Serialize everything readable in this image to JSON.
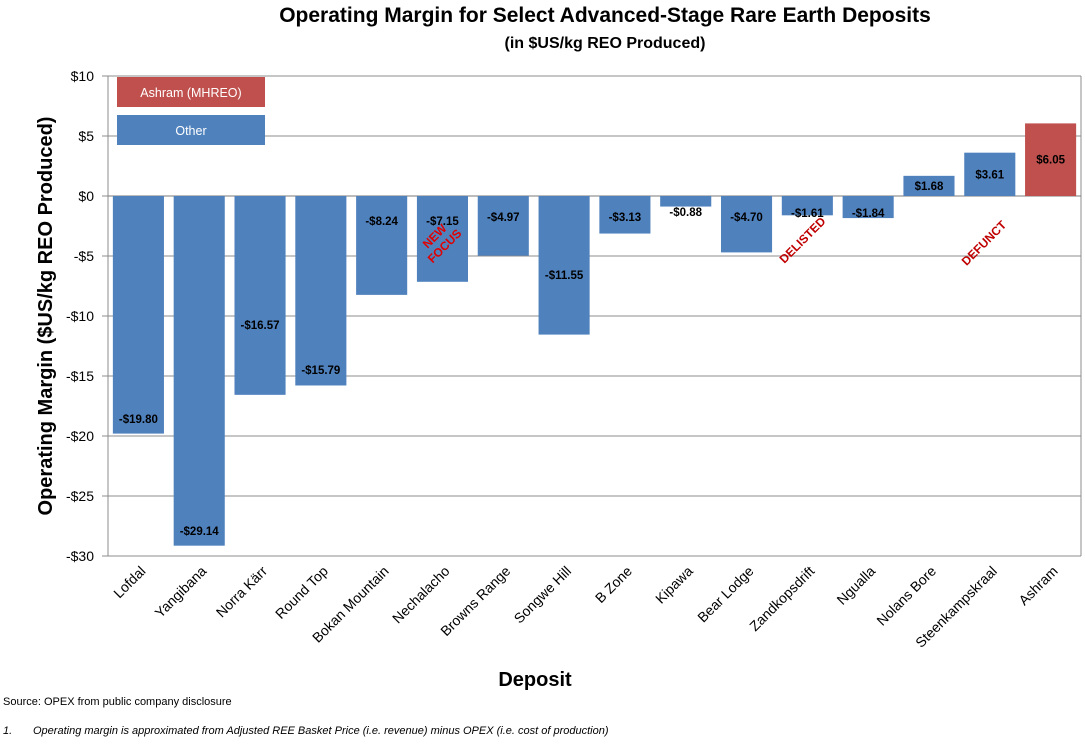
{
  "chart_data": {
    "type": "bar",
    "title": "Operating Margin for Select Advanced-Stage Rare Earth Deposits",
    "subtitle": "(in $US/kg REO Produced)",
    "xlabel": "Deposit",
    "ylabel": "Operating Margin ($US/kg REO Produced)",
    "ylim": [
      -30,
      10
    ],
    "yticks": [
      10,
      5,
      0,
      -5,
      -10,
      -15,
      -20,
      -25,
      -30
    ],
    "ytick_labels": [
      "$10",
      "$5",
      "$0",
      "-$5",
      "-$10",
      "-$15",
      "-$20",
      "-$25",
      "-$30"
    ],
    "grid": true,
    "categories": [
      "Lofdal",
      "Yangibana",
      "Norra Kärr",
      "Round Top",
      "Bokan Mountain",
      "Nechalacho",
      "Browns Range",
      "Songwe Hill",
      "B Zone",
      "Kipawa",
      "Bear Lodge",
      "Zandkopsdrift",
      "Ngualla",
      "Nolans Bore",
      "Steenkampskraal",
      "Ashram"
    ],
    "values": [
      -19.8,
      -29.14,
      -16.57,
      -15.79,
      -8.24,
      -7.15,
      -4.97,
      -11.55,
      -3.13,
      -0.88,
      -4.7,
      -1.61,
      -1.84,
      1.68,
      3.61,
      6.05
    ],
    "value_labels": [
      "-$19.80",
      "-$29.14",
      "-$16.57",
      "-$15.79",
      "-$8.24",
      "-$7.15",
      "-$4.97",
      "-$11.55",
      "-$3.13",
      "-$0.88",
      "-$4.70",
      "-$1.61",
      "-$1.84",
      "$1.68",
      "$3.61",
      "$6.05"
    ],
    "groups": [
      "Other",
      "Other",
      "Other",
      "Other",
      "Other",
      "Other",
      "Other",
      "Other",
      "Other",
      "Other",
      "Other",
      "Other",
      "Other",
      "Other",
      "Other",
      "Ashram (MHREO)"
    ],
    "legend": {
      "placement": "top-left",
      "entries": [
        {
          "name": "Ashram (MHREO)",
          "color": "#c0504d"
        },
        {
          "name": "Other",
          "color": "#4f81bd"
        }
      ]
    },
    "annotations": [
      {
        "text": "NEW FOCUS",
        "category": "Nechalacho",
        "color": "#e00000"
      },
      {
        "text": "DELISTED",
        "category": "Zandkopsdrift",
        "color": "#c00000"
      },
      {
        "text": "DEFUNCT",
        "category": "Steenkampskraal",
        "color": "#c00000"
      }
    ]
  },
  "footer": {
    "source": "Source: OPEX from public company disclosure",
    "footnote_number": "1.",
    "footnote_text": "Operating margin is approximated from Adjusted REE Basket Price (i.e. revenue) minus OPEX (i.e. cost of production)"
  }
}
